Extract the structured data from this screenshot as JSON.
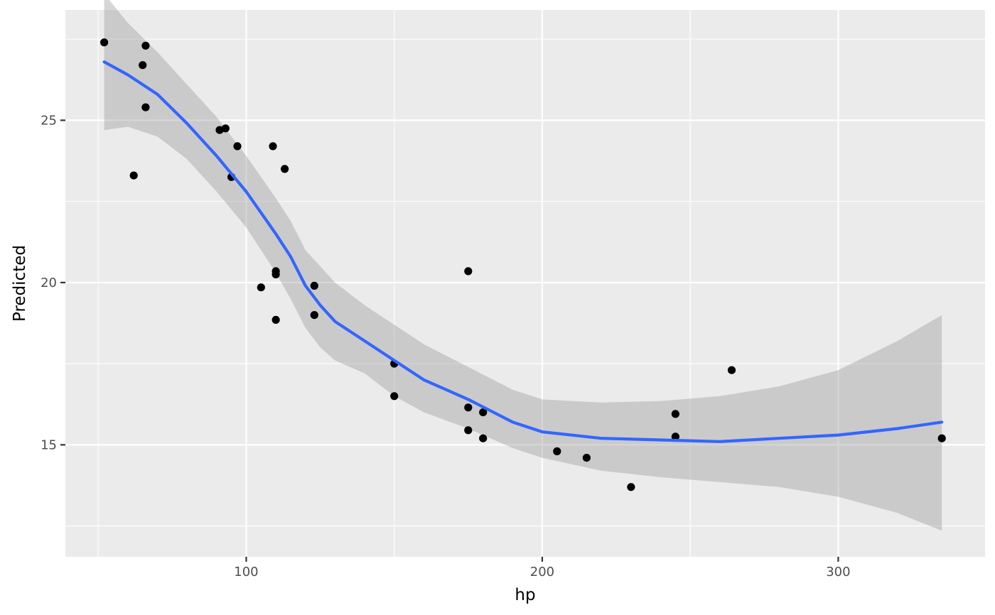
{
  "chart_data": {
    "type": "scatter",
    "title": "",
    "xlabel": "hp",
    "ylabel": "Predicted",
    "xlim": [
      38.9,
      349.6
    ],
    "ylim": [
      11.55,
      28.4
    ],
    "x_ticks": [
      100,
      200,
      300
    ],
    "y_ticks": [
      15,
      20,
      25
    ],
    "grid": true,
    "legend": "none",
    "colors": {
      "panel": "#ebebeb",
      "grid": "#ffffff",
      "points": "#000000",
      "smooth_line": "#3366ff",
      "ribbon": "#999999"
    },
    "points": [
      {
        "x": 52,
        "y": 27.4
      },
      {
        "x": 62,
        "y": 23.3
      },
      {
        "x": 65,
        "y": 26.7
      },
      {
        "x": 66,
        "y": 27.3
      },
      {
        "x": 66,
        "y": 25.4
      },
      {
        "x": 91,
        "y": 24.7
      },
      {
        "x": 93,
        "y": 24.75
      },
      {
        "x": 95,
        "y": 23.25
      },
      {
        "x": 97,
        "y": 24.2
      },
      {
        "x": 105,
        "y": 19.85
      },
      {
        "x": 109,
        "y": 24.2
      },
      {
        "x": 110,
        "y": 20.35
      },
      {
        "x": 110,
        "y": 20.25
      },
      {
        "x": 110,
        "y": 18.85
      },
      {
        "x": 113,
        "y": 23.5
      },
      {
        "x": 123,
        "y": 19.9
      },
      {
        "x": 123,
        "y": 19.0
      },
      {
        "x": 150,
        "y": 17.5
      },
      {
        "x": 150,
        "y": 16.5
      },
      {
        "x": 175,
        "y": 20.35
      },
      {
        "x": 175,
        "y": 16.15
      },
      {
        "x": 175,
        "y": 15.45
      },
      {
        "x": 180,
        "y": 16.0
      },
      {
        "x": 180,
        "y": 15.2
      },
      {
        "x": 205,
        "y": 14.8
      },
      {
        "x": 215,
        "y": 14.6
      },
      {
        "x": 230,
        "y": 13.7
      },
      {
        "x": 245,
        "y": 15.95
      },
      {
        "x": 245,
        "y": 15.25
      },
      {
        "x": 264,
        "y": 17.3
      },
      {
        "x": 335,
        "y": 15.2
      }
    ],
    "smooth": [
      {
        "x": 52,
        "y": 26.8,
        "lo": 24.7,
        "hi": 28.9
      },
      {
        "x": 60,
        "y": 26.4,
        "lo": 24.8,
        "hi": 28.0
      },
      {
        "x": 70,
        "y": 25.8,
        "lo": 24.5,
        "hi": 27.1
      },
      {
        "x": 80,
        "y": 24.9,
        "lo": 23.8,
        "hi": 26.1
      },
      {
        "x": 90,
        "y": 23.9,
        "lo": 22.8,
        "hi": 25.1
      },
      {
        "x": 100,
        "y": 22.8,
        "lo": 21.7,
        "hi": 23.9
      },
      {
        "x": 110,
        "y": 21.5,
        "lo": 20.3,
        "hi": 22.6
      },
      {
        "x": 115,
        "y": 20.8,
        "lo": 19.5,
        "hi": 21.9
      },
      {
        "x": 120,
        "y": 19.9,
        "lo": 18.6,
        "hi": 21.0
      },
      {
        "x": 125,
        "y": 19.3,
        "lo": 18.0,
        "hi": 20.5
      },
      {
        "x": 130,
        "y": 18.8,
        "lo": 17.6,
        "hi": 20.0
      },
      {
        "x": 140,
        "y": 18.2,
        "lo": 17.2,
        "hi": 19.3
      },
      {
        "x": 150,
        "y": 17.6,
        "lo": 16.5,
        "hi": 18.7
      },
      {
        "x": 160,
        "y": 17.0,
        "lo": 16.0,
        "hi": 18.1
      },
      {
        "x": 175,
        "y": 16.4,
        "lo": 15.5,
        "hi": 17.4
      },
      {
        "x": 190,
        "y": 15.7,
        "lo": 14.9,
        "hi": 16.7
      },
      {
        "x": 200,
        "y": 15.4,
        "lo": 14.6,
        "hi": 16.4
      },
      {
        "x": 220,
        "y": 15.2,
        "lo": 14.2,
        "hi": 16.3
      },
      {
        "x": 240,
        "y": 15.15,
        "lo": 14.0,
        "hi": 16.35
      },
      {
        "x": 260,
        "y": 15.1,
        "lo": 13.85,
        "hi": 16.5
      },
      {
        "x": 280,
        "y": 15.2,
        "lo": 13.7,
        "hi": 16.8
      },
      {
        "x": 300,
        "y": 15.3,
        "lo": 13.4,
        "hi": 17.3
      },
      {
        "x": 320,
        "y": 15.5,
        "lo": 12.9,
        "hi": 18.2
      },
      {
        "x": 335,
        "y": 15.7,
        "lo": 12.35,
        "hi": 19.0
      }
    ]
  }
}
